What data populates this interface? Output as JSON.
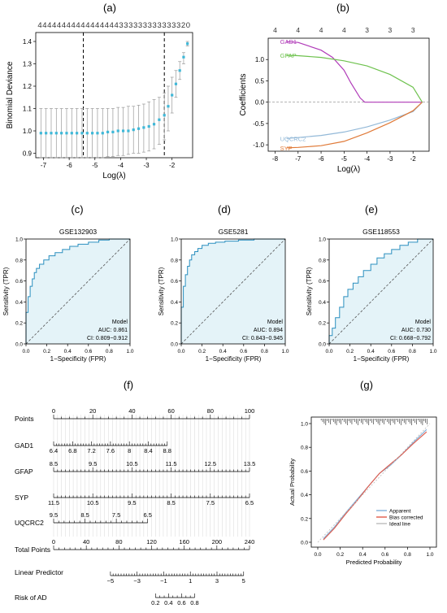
{
  "panel_labels": [
    "(a)",
    "(b)",
    "(c)",
    "(d)",
    "(e)",
    "(f)",
    "(g)"
  ],
  "chart_data": [
    {
      "id": "a",
      "type": "scatter",
      "xlabel": "Log(λ)",
      "ylabel": "Binomial Deviance",
      "top_counts": "44444444444444444333333333333320",
      "xlim": [
        -7.3,
        -1.2
      ],
      "ylim": [
        0.88,
        1.44
      ],
      "xticks": [
        -7,
        -6,
        -5,
        -4,
        -3,
        -2
      ],
      "yticks": [
        0.9,
        1.0,
        1.1,
        1.2,
        1.3,
        1.4
      ],
      "vlines": [
        -5.45,
        -2.3
      ],
      "points": [
        {
          "x": -7.1,
          "y": 0.99,
          "lo": 0.88,
          "hi": 1.1
        },
        {
          "x": -6.9,
          "y": 0.99,
          "lo": 0.88,
          "hi": 1.1
        },
        {
          "x": -6.7,
          "y": 0.99,
          "lo": 0.88,
          "hi": 1.1
        },
        {
          "x": -6.5,
          "y": 0.99,
          "lo": 0.88,
          "hi": 1.1
        },
        {
          "x": -6.3,
          "y": 0.99,
          "lo": 0.88,
          "hi": 1.1
        },
        {
          "x": -6.1,
          "y": 0.99,
          "lo": 0.88,
          "hi": 1.1
        },
        {
          "x": -5.9,
          "y": 0.99,
          "lo": 0.88,
          "hi": 1.1
        },
        {
          "x": -5.7,
          "y": 0.99,
          "lo": 0.88,
          "hi": 1.1
        },
        {
          "x": -5.5,
          "y": 0.99,
          "lo": 0.88,
          "hi": 1.1
        },
        {
          "x": -5.3,
          "y": 0.99,
          "lo": 0.88,
          "hi": 1.1
        },
        {
          "x": -5.1,
          "y": 0.99,
          "lo": 0.88,
          "hi": 1.1
        },
        {
          "x": -4.9,
          "y": 0.99,
          "lo": 0.88,
          "hi": 1.1
        },
        {
          "x": -4.7,
          "y": 0.99,
          "lo": 0.88,
          "hi": 1.1
        },
        {
          "x": -4.5,
          "y": 0.995,
          "lo": 0.885,
          "hi": 1.1
        },
        {
          "x": -4.3,
          "y": 0.995,
          "lo": 0.885,
          "hi": 1.1
        },
        {
          "x": -4.1,
          "y": 1.0,
          "lo": 0.89,
          "hi": 1.105
        },
        {
          "x": -3.9,
          "y": 1.0,
          "lo": 0.89,
          "hi": 1.105
        },
        {
          "x": -3.7,
          "y": 1.0,
          "lo": 0.895,
          "hi": 1.11
        },
        {
          "x": -3.5,
          "y": 1.005,
          "lo": 0.9,
          "hi": 1.11
        },
        {
          "x": -3.3,
          "y": 1.01,
          "lo": 0.9,
          "hi": 1.115
        },
        {
          "x": -3.1,
          "y": 1.015,
          "lo": 0.905,
          "hi": 1.12
        },
        {
          "x": -2.9,
          "y": 1.02,
          "lo": 0.91,
          "hi": 1.13
        },
        {
          "x": -2.7,
          "y": 1.03,
          "lo": 0.92,
          "hi": 1.14
        },
        {
          "x": -2.5,
          "y": 1.05,
          "lo": 0.94,
          "hi": 1.15
        },
        {
          "x": -2.3,
          "y": 1.07,
          "lo": 0.96,
          "hi": 1.17
        },
        {
          "x": -2.15,
          "y": 1.11,
          "lo": 1.0,
          "hi": 1.2
        },
        {
          "x": -2.0,
          "y": 1.16,
          "lo": 1.08,
          "hi": 1.24
        },
        {
          "x": -1.85,
          "y": 1.21,
          "lo": 1.15,
          "hi": 1.27
        },
        {
          "x": -1.7,
          "y": 1.27,
          "lo": 1.23,
          "hi": 1.31
        },
        {
          "x": -1.55,
          "y": 1.33,
          "lo": 1.3,
          "hi": 1.35
        },
        {
          "x": -1.4,
          "y": 1.39,
          "lo": 1.38,
          "hi": 1.4
        }
      ]
    },
    {
      "id": "b",
      "type": "line",
      "xlabel": "Log(λ)",
      "ylabel": "Coefficients",
      "top_counts": [
        {
          "x": -8,
          "label": "4"
        },
        {
          "x": -7,
          "label": "4"
        },
        {
          "x": -6,
          "label": "4"
        },
        {
          "x": -5,
          "label": "4"
        },
        {
          "x": -4,
          "label": "3"
        },
        {
          "x": -3,
          "label": "3"
        },
        {
          "x": -2,
          "label": "3"
        }
      ],
      "xlim": [
        -8.3,
        -1.3
      ],
      "ylim": [
        -1.15,
        1.5
      ],
      "xticks": [
        -8,
        -7,
        -6,
        -5,
        -4,
        -3,
        -2
      ],
      "yticks": [
        -1.0,
        -0.5,
        0.0,
        0.5,
        1.0
      ],
      "series": [
        {
          "name": "GAD1",
          "color": "#b03ab8",
          "x": [
            -7.5,
            -7,
            -6,
            -5.5,
            -5,
            -4.7,
            -4.3,
            -4.1,
            -3,
            -2,
            -1.6
          ],
          "y": [
            1.42,
            1.4,
            1.22,
            1.05,
            0.75,
            0.45,
            0.1,
            0.0,
            0.0,
            0.0,
            0.0
          ]
        },
        {
          "name": "GFAP",
          "color": "#6ec24e",
          "x": [
            -7.5,
            -7,
            -6,
            -5,
            -4,
            -3,
            -2,
            -1.6
          ],
          "y": [
            1.1,
            1.09,
            1.05,
            0.97,
            0.85,
            0.65,
            0.35,
            0.0
          ]
        },
        {
          "name": "UQCRC2",
          "color": "#93b9d8",
          "x": [
            -7.5,
            -7,
            -6,
            -5,
            -4,
            -3,
            -2,
            -1.6
          ],
          "y": [
            -0.85,
            -0.83,
            -0.78,
            -0.7,
            -0.58,
            -0.42,
            -0.22,
            0.0
          ]
        },
        {
          "name": "SYP",
          "color": "#e07a38",
          "x": [
            -7.5,
            -7,
            -6,
            -5,
            -4,
            -3,
            -2,
            -1.6
          ],
          "y": [
            -1.07,
            -1.06,
            -1.02,
            -0.92,
            -0.72,
            -0.48,
            -0.2,
            0.0
          ]
        }
      ]
    },
    {
      "id": "c",
      "type": "line",
      "title": "GSE132903",
      "xlabel": "1−Specificity (FPR)",
      "ylabel": "Sensitivity (TPR)",
      "legend": [
        "Model",
        "AUC: 0.861",
        "CI: 0.809−0.912"
      ],
      "xticks": [
        0.0,
        0.2,
        0.4,
        0.6,
        0.8,
        1.0
      ],
      "yticks": [
        0.0,
        0.2,
        0.4,
        0.6,
        0.8,
        1.0
      ],
      "roc_x": [
        0,
        0,
        0.02,
        0.02,
        0.04,
        0.04,
        0.06,
        0.06,
        0.08,
        0.08,
        0.1,
        0.1,
        0.13,
        0.13,
        0.17,
        0.17,
        0.22,
        0.22,
        0.28,
        0.28,
        0.35,
        0.35,
        0.42,
        0.42,
        0.5,
        0.5,
        0.6,
        0.6,
        0.7,
        0.7,
        0.8,
        0.8,
        1.0
      ],
      "roc_y": [
        0,
        0.3,
        0.3,
        0.45,
        0.45,
        0.55,
        0.55,
        0.62,
        0.62,
        0.68,
        0.68,
        0.72,
        0.72,
        0.76,
        0.76,
        0.8,
        0.8,
        0.84,
        0.84,
        0.87,
        0.87,
        0.9,
        0.9,
        0.93,
        0.93,
        0.95,
        0.95,
        0.97,
        0.97,
        0.99,
        0.99,
        1.0,
        1.0
      ]
    },
    {
      "id": "d",
      "type": "line",
      "title": "GSE5281",
      "xlabel": "1−Specificity (FPR)",
      "ylabel": "Sensitivity (TPR)",
      "legend": [
        "Model",
        "AUC: 0.894",
        "CI: 0.843−0.945"
      ],
      "xticks": [
        0.0,
        0.2,
        0.4,
        0.6,
        0.8,
        1.0
      ],
      "yticks": [
        0.0,
        0.2,
        0.4,
        0.6,
        0.8,
        1.0
      ],
      "roc_x": [
        0,
        0,
        0.02,
        0.02,
        0.04,
        0.04,
        0.06,
        0.06,
        0.08,
        0.08,
        0.1,
        0.1,
        0.13,
        0.13,
        0.16,
        0.16,
        0.2,
        0.2,
        0.26,
        0.26,
        0.33,
        0.33,
        0.42,
        0.42,
        0.55,
        0.55,
        0.7,
        0.7,
        1.0
      ],
      "roc_y": [
        0,
        0.35,
        0.35,
        0.55,
        0.55,
        0.66,
        0.66,
        0.74,
        0.74,
        0.8,
        0.8,
        0.85,
        0.85,
        0.88,
        0.88,
        0.91,
        0.91,
        0.94,
        0.94,
        0.96,
        0.96,
        0.97,
        0.97,
        0.98,
        0.98,
        0.99,
        0.99,
        1.0,
        1.0
      ]
    },
    {
      "id": "e",
      "type": "line",
      "title": "GSE118553",
      "xlabel": "1−Specificity (FPR)",
      "ylabel": "Sensitivity (TPR)",
      "legend": [
        "Model",
        "AUC: 0.730",
        "CI: 0.668−0.792"
      ],
      "xticks": [
        0.0,
        0.2,
        0.4,
        0.6,
        0.8,
        1.0
      ],
      "yticks": [
        0.0,
        0.2,
        0.4,
        0.6,
        0.8,
        1.0
      ],
      "roc_x": [
        0,
        0,
        0.03,
        0.03,
        0.06,
        0.06,
        0.1,
        0.1,
        0.14,
        0.14,
        0.18,
        0.18,
        0.23,
        0.23,
        0.28,
        0.28,
        0.33,
        0.33,
        0.4,
        0.4,
        0.46,
        0.46,
        0.53,
        0.53,
        0.6,
        0.6,
        0.68,
        0.68,
        0.76,
        0.76,
        0.85,
        0.85,
        1.0
      ],
      "roc_y": [
        0,
        0.08,
        0.08,
        0.15,
        0.15,
        0.25,
        0.25,
        0.35,
        0.35,
        0.45,
        0.45,
        0.52,
        0.52,
        0.58,
        0.58,
        0.64,
        0.64,
        0.7,
        0.7,
        0.76,
        0.76,
        0.82,
        0.82,
        0.86,
        0.86,
        0.9,
        0.9,
        0.94,
        0.94,
        0.97,
        0.97,
        1.0,
        1.0
      ]
    },
    {
      "id": "f",
      "type": "table",
      "rows": [
        {
          "label": "Points",
          "ticks": [
            "0",
            "20",
            "40",
            "60",
            "80",
            "100"
          ]
        },
        {
          "label": "GAD1",
          "ticks": [
            "6.4",
            "6.8",
            "7.2",
            "7.6",
            "8",
            "8.4",
            "8.8"
          ]
        },
        {
          "label": "GFAP",
          "ticks": [
            "8.5",
            "9.5",
            "10.5",
            "11.5",
            "12.5",
            "13.5"
          ]
        },
        {
          "label": "SYP",
          "ticks": [
            "11.5",
            "10.5",
            "9.5",
            "8.5",
            "7.5",
            "6.5"
          ]
        },
        {
          "label": "UQCRC2",
          "ticks": [
            "9.5",
            "8.5",
            "7.5",
            "6.5"
          ]
        },
        {
          "label": "Total Points",
          "ticks": [
            "0",
            "40",
            "80",
            "120",
            "160",
            "200",
            "240"
          ]
        },
        {
          "label": "Linear Predictor",
          "ticks": [
            "−5",
            "−3",
            "−1",
            "1",
            "3",
            "5"
          ]
        },
        {
          "label": "Risk of AD",
          "ticks": [
            "0.2",
            "0.4",
            "0.6",
            "0.8"
          ]
        }
      ]
    },
    {
      "id": "g",
      "type": "line",
      "xlabel": "Predicted Probability",
      "ylabel": "Actual Probability",
      "xticks": [
        0.0,
        0.2,
        0.4,
        0.6,
        0.8,
        1.0
      ],
      "yticks": [
        0.0,
        0.2,
        0.4,
        0.6,
        0.8,
        1.0
      ],
      "series": [
        {
          "name": "Apparent",
          "color": "#7fb0da",
          "x": [
            0.05,
            0.15,
            0.25,
            0.35,
            0.45,
            0.55,
            0.65,
            0.75,
            0.85,
            0.97
          ],
          "y": [
            0.03,
            0.13,
            0.25,
            0.36,
            0.47,
            0.58,
            0.65,
            0.74,
            0.84,
            0.95
          ]
        },
        {
          "name": "Bias corrected",
          "color": "#e05a4a",
          "x": [
            0.05,
            0.15,
            0.25,
            0.35,
            0.45,
            0.55,
            0.65,
            0.75,
            0.85,
            0.97
          ],
          "y": [
            0.02,
            0.12,
            0.24,
            0.35,
            0.47,
            0.58,
            0.66,
            0.74,
            0.83,
            0.93
          ]
        },
        {
          "name": "Ideal line",
          "color": "#bbbbbb",
          "x": [
            0,
            1
          ],
          "y": [
            0,
            1
          ]
        }
      ]
    }
  ]
}
